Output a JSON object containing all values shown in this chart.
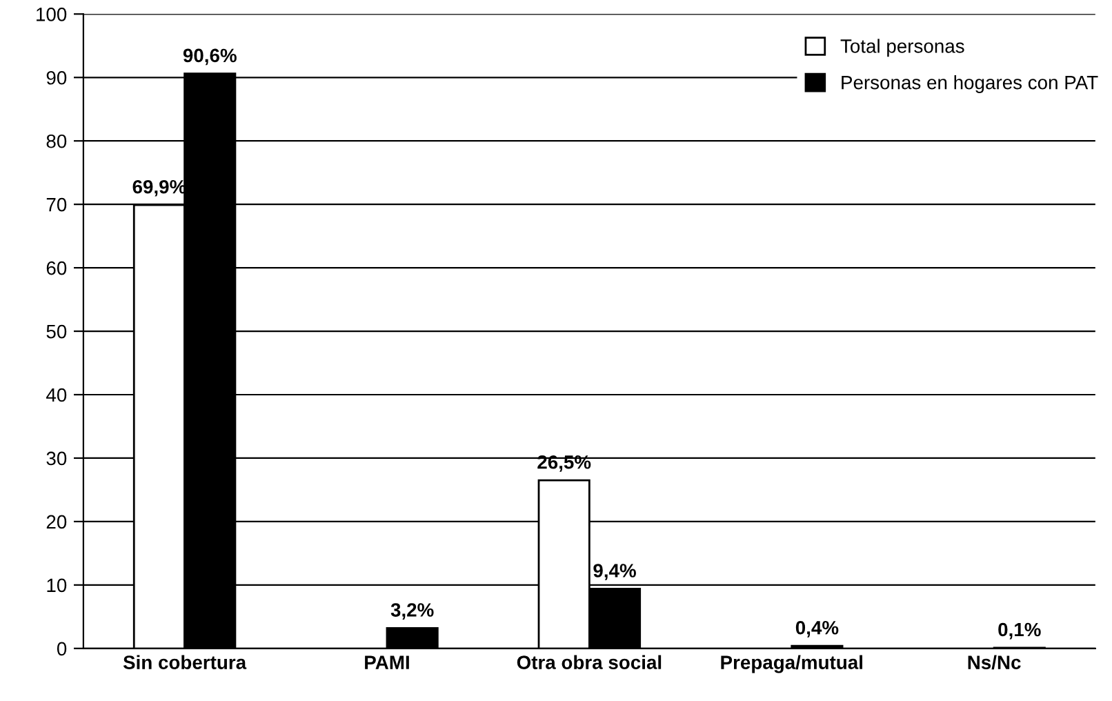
{
  "chart_data": {
    "type": "bar",
    "categories": [
      "Sin cobertura",
      "PAMI",
      "Otra obra social",
      "Prepaga/mutual",
      "Ns/Nc"
    ],
    "series": [
      {
        "name": "Total personas",
        "color": "#ffffff",
        "values": [
          69.9,
          null,
          26.5,
          null,
          null
        ],
        "value_labels": [
          "69,9%",
          null,
          "26,5%",
          null,
          null
        ]
      },
      {
        "name": "Personas en hogares con PAT",
        "color": "#000000",
        "values": [
          90.6,
          3.2,
          9.4,
          0.4,
          0.1
        ],
        "value_labels": [
          "90,6%",
          "3,2%",
          "9,4%",
          "0,4%",
          "0,1%"
        ]
      }
    ],
    "ylim": [
      0,
      100
    ],
    "yticks": [
      0,
      10,
      20,
      30,
      40,
      50,
      60,
      70,
      80,
      90,
      100
    ],
    "grid": "y",
    "legend": "top right"
  }
}
